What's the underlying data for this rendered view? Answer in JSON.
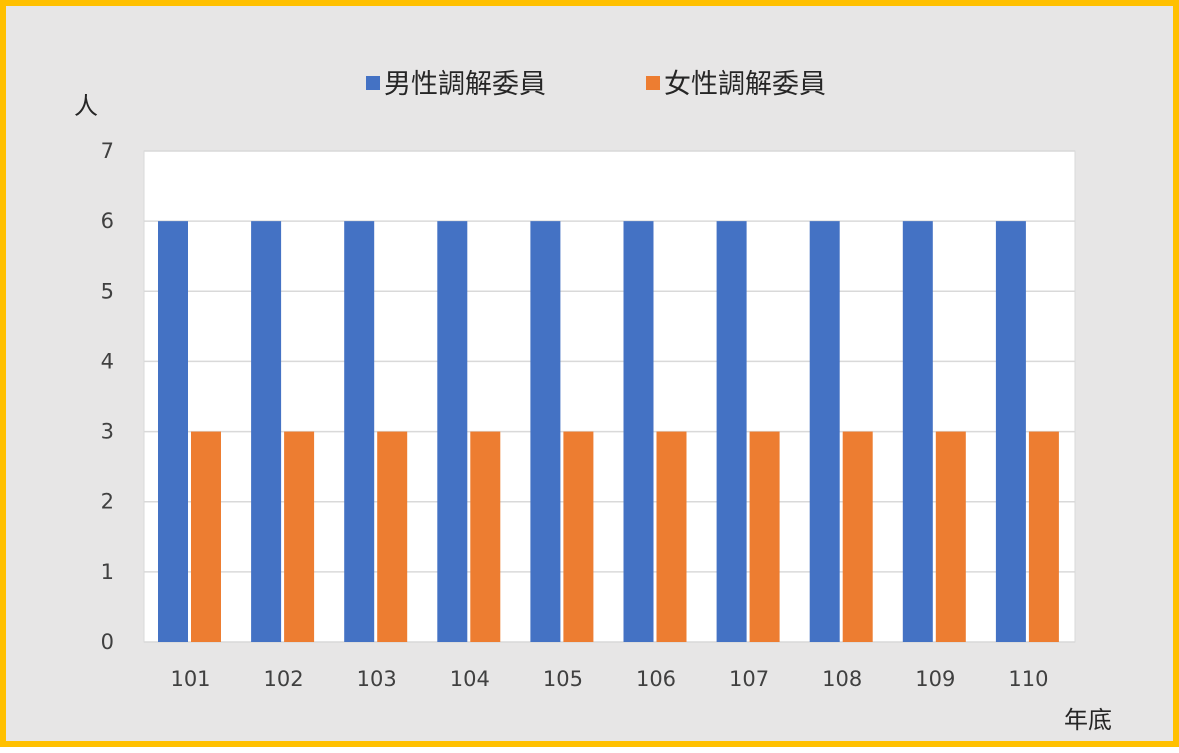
{
  "chart_data": {
    "type": "bar",
    "categories": [
      "101",
      "102",
      "103",
      "104",
      "105",
      "106",
      "107",
      "108",
      "109",
      "110"
    ],
    "series": [
      {
        "name": "男性調解委員",
        "values": [
          6,
          6,
          6,
          6,
          6,
          6,
          6,
          6,
          6,
          6
        ]
      },
      {
        "name": "女性調解委員",
        "values": [
          3,
          3,
          3,
          3,
          3,
          3,
          3,
          3,
          3,
          3
        ]
      }
    ],
    "title": "",
    "xlabel": "年底",
    "ylabel": "人",
    "ylim": [
      0,
      7
    ],
    "yticks": [
      "0",
      "1",
      "2",
      "3",
      "4",
      "5",
      "6",
      "7"
    ],
    "grid": true,
    "legend_position": "top",
    "colors": {
      "series": [
        "#4472C4",
        "#ED7D31"
      ],
      "frame_border": "#FFC000",
      "frame_background": "#E7E6E6",
      "plot_background": "#FFFFFF",
      "gridline": "#D9D9D9"
    }
  }
}
